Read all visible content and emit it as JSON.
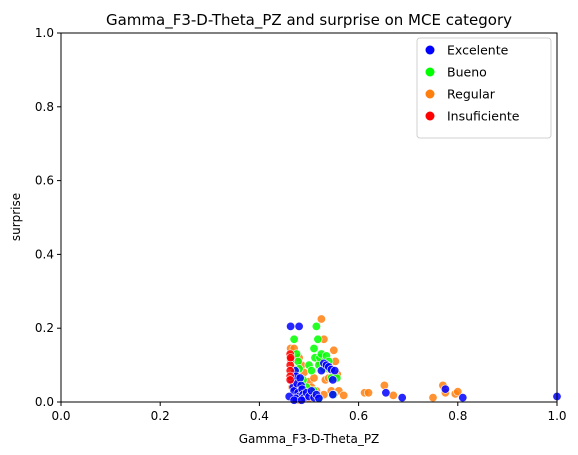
{
  "chart_data": {
    "type": "scatter",
    "title": "Gamma_F3-D-Theta_PZ and surprise on MCE category",
    "xlabel": "Gamma_F3-D-Theta_PZ",
    "ylabel": "surprise",
    "xlim": [
      0,
      1
    ],
    "ylim": [
      0,
      1
    ],
    "x_ticks": [
      "0.0",
      "0.2",
      "0.4",
      "0.6",
      "0.8",
      "1.0"
    ],
    "y_ticks": [
      "0.0",
      "0.2",
      "0.4",
      "0.6",
      "0.8",
      "1.0"
    ],
    "grid": false,
    "legend_position": "top-right",
    "series": [
      {
        "name": "Regular",
        "color": "#ff7f0e",
        "points": [
          [
            0.463,
            0.145
          ],
          [
            0.462,
            0.125
          ],
          [
            0.465,
            0.11
          ],
          [
            0.47,
            0.145
          ],
          [
            0.468,
            0.09
          ],
          [
            0.472,
            0.06
          ],
          [
            0.466,
            0.04
          ],
          [
            0.475,
            0.03
          ],
          [
            0.48,
            0.12
          ],
          [
            0.485,
            0.1
          ],
          [
            0.49,
            0.08
          ],
          [
            0.5,
            0.055
          ],
          [
            0.505,
            0.04
          ],
          [
            0.51,
            0.065
          ],
          [
            0.515,
            0.03
          ],
          [
            0.52,
            0.11
          ],
          [
            0.525,
            0.225
          ],
          [
            0.53,
            0.17
          ],
          [
            0.533,
            0.06
          ],
          [
            0.535,
            0.09
          ],
          [
            0.54,
            0.065
          ],
          [
            0.545,
            0.03
          ],
          [
            0.55,
            0.14
          ],
          [
            0.553,
            0.11
          ],
          [
            0.557,
            0.075
          ],
          [
            0.56,
            0.03
          ],
          [
            0.57,
            0.018
          ],
          [
            0.612,
            0.025
          ],
          [
            0.62,
            0.025
          ],
          [
            0.652,
            0.045
          ],
          [
            0.67,
            0.018
          ],
          [
            0.75,
            0.012
          ],
          [
            0.77,
            0.045
          ],
          [
            0.775,
            0.025
          ],
          [
            0.795,
            0.022
          ],
          [
            0.8,
            0.028
          ],
          [
            0.47,
            0.012
          ],
          [
            0.5,
            0.01
          ],
          [
            0.53,
            0.02
          ],
          [
            0.48,
            0.005
          ]
        ]
      },
      {
        "name": "Bueno",
        "color": "#00ff00",
        "points": [
          [
            0.47,
            0.17
          ],
          [
            0.475,
            0.13
          ],
          [
            0.478,
            0.11
          ],
          [
            0.48,
            0.09
          ],
          [
            0.488,
            0.06
          ],
          [
            0.495,
            0.04
          ],
          [
            0.5,
            0.1
          ],
          [
            0.505,
            0.085
          ],
          [
            0.51,
            0.145
          ],
          [
            0.512,
            0.12
          ],
          [
            0.515,
            0.205
          ],
          [
            0.518,
            0.17
          ],
          [
            0.52,
            0.1
          ],
          [
            0.522,
            0.12
          ],
          [
            0.525,
            0.13
          ],
          [
            0.53,
            0.09
          ],
          [
            0.535,
            0.125
          ],
          [
            0.54,
            0.11
          ],
          [
            0.545,
            0.065
          ],
          [
            0.55,
            0.02
          ],
          [
            0.556,
            0.065
          ],
          [
            0.52,
            0.01
          ],
          [
            0.49,
            0.02
          ],
          [
            0.51,
            0.03
          ]
        ]
      },
      {
        "name": "Excelente",
        "color": "#0000ff",
        "points": [
          [
            0.463,
            0.205
          ],
          [
            0.48,
            0.205
          ],
          [
            0.465,
            0.06
          ],
          [
            0.468,
            0.04
          ],
          [
            0.47,
            0.03
          ],
          [
            0.472,
            0.085
          ],
          [
            0.474,
            0.07
          ],
          [
            0.476,
            0.05
          ],
          [
            0.478,
            0.025
          ],
          [
            0.48,
            0.015
          ],
          [
            0.482,
            0.065
          ],
          [
            0.484,
            0.045
          ],
          [
            0.486,
            0.035
          ],
          [
            0.488,
            0.02
          ],
          [
            0.49,
            0.012
          ],
          [
            0.495,
            0.025
          ],
          [
            0.5,
            0.015
          ],
          [
            0.505,
            0.03
          ],
          [
            0.51,
            0.012
          ],
          [
            0.515,
            0.02
          ],
          [
            0.52,
            0.01
          ],
          [
            0.525,
            0.085
          ],
          [
            0.53,
            0.105
          ],
          [
            0.535,
            0.1
          ],
          [
            0.54,
            0.095
          ],
          [
            0.545,
            0.088
          ],
          [
            0.548,
            0.06
          ],
          [
            0.552,
            0.085
          ],
          [
            0.548,
            0.02
          ],
          [
            0.655,
            0.025
          ],
          [
            0.688,
            0.012
          ],
          [
            0.775,
            0.035
          ],
          [
            0.81,
            0.012
          ],
          [
            1.0,
            0.015
          ],
          [
            0.473,
            0.01
          ],
          [
            0.46,
            0.015
          ],
          [
            0.47,
            0.005
          ],
          [
            0.485,
            0.005
          ]
        ]
      },
      {
        "name": "Insuficiente",
        "color": "#ff0000",
        "points": [
          [
            0.462,
            0.13
          ],
          [
            0.463,
            0.115
          ],
          [
            0.462,
            0.1
          ],
          [
            0.462,
            0.085
          ],
          [
            0.462,
            0.07
          ],
          [
            0.462,
            0.06
          ],
          [
            0.463,
            0.12
          ]
        ]
      }
    ],
    "legend_order": [
      "Excelente",
      "Bueno",
      "Regular",
      "Insuficiente"
    ]
  }
}
